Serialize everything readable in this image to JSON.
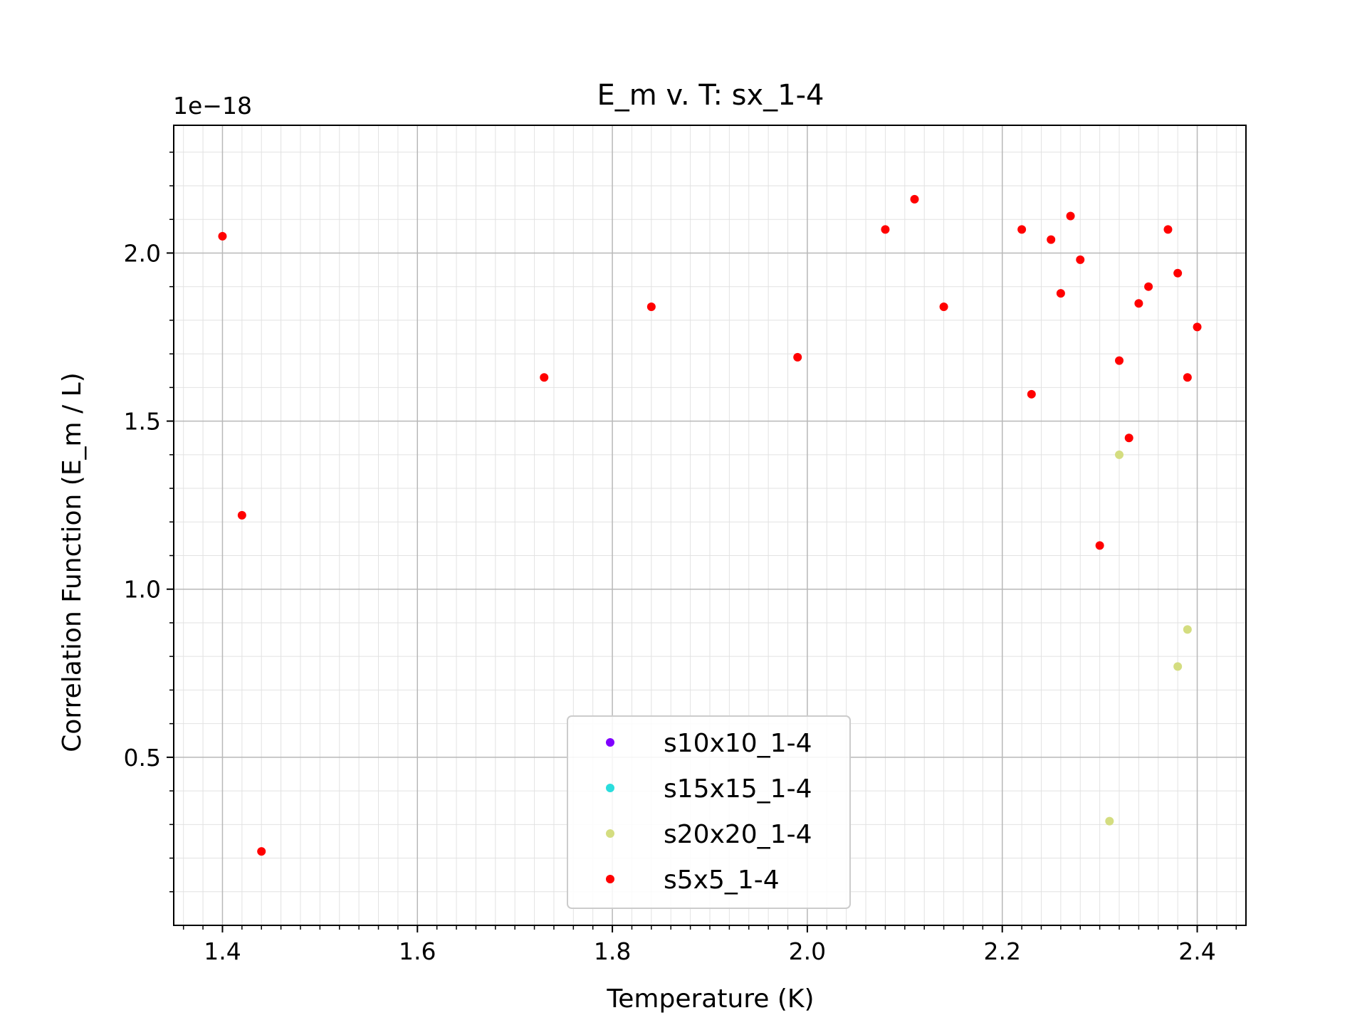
{
  "chart_data": {
    "type": "scatter",
    "title": "E_m v. T: sx_1-4",
    "xlabel": "Temperature (K)",
    "ylabel": "Correlation Function (E_m / L)",
    "y_offset_text": "1e−18",
    "xlim": [
      1.35,
      2.45
    ],
    "ylim": [
      0.0,
      2.38
    ],
    "x_ticks": [
      1.4,
      1.6,
      1.8,
      2.0,
      2.2,
      2.4
    ],
    "x_tick_labels": [
      "1.4",
      "1.6",
      "1.8",
      "2.0",
      "2.2",
      "2.4"
    ],
    "y_ticks": [
      0.5,
      1.0,
      1.5,
      2.0
    ],
    "y_tick_labels": [
      "0.5",
      "1.0",
      "1.5",
      "2.0"
    ],
    "grid": true,
    "minor_grid": true,
    "legend_position": "lower-center",
    "series": [
      {
        "name": "s10x10_1-4",
        "color": "#8000ff",
        "x": [],
        "y": []
      },
      {
        "name": "s15x15_1-4",
        "color": "#2adddd",
        "x": [],
        "y": []
      },
      {
        "name": "s20x20_1-4",
        "color": "#d4dd80",
        "x": [
          2.32,
          2.39,
          2.38,
          2.31
        ],
        "y": [
          1.4,
          0.88,
          0.77,
          0.31
        ]
      },
      {
        "name": "s5x5_1-4",
        "color": "#ff0000",
        "x": [
          1.4,
          1.42,
          1.44,
          1.73,
          1.84,
          1.99,
          2.08,
          2.11,
          2.14,
          2.22,
          2.23,
          2.25,
          2.26,
          2.27,
          2.28,
          2.3,
          2.32,
          2.33,
          2.34,
          2.35,
          2.37,
          2.38,
          2.39,
          2.4
        ],
        "y": [
          2.05,
          1.22,
          0.22,
          1.63,
          1.84,
          1.69,
          2.07,
          2.16,
          1.84,
          2.07,
          1.58,
          2.04,
          1.88,
          2.11,
          1.98,
          1.13,
          1.68,
          1.45,
          1.85,
          1.9,
          2.07,
          1.94,
          1.63,
          1.78
        ]
      }
    ]
  }
}
